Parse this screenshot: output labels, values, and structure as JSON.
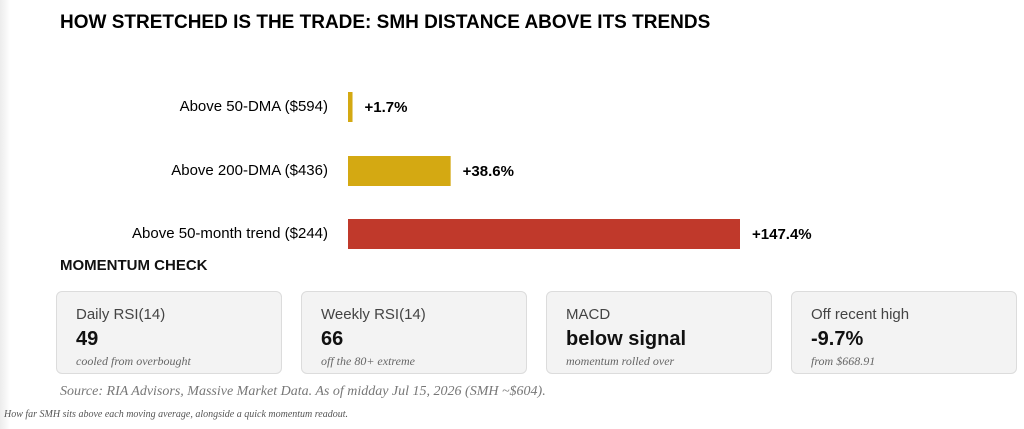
{
  "chart_data": {
    "type": "bar",
    "orientation": "horizontal",
    "title": "HOW STRETCHED IS THE TRADE: SMH DISTANCE ABOVE ITS TRENDS",
    "categories": [
      "Above 50-DMA ($594)",
      "Above 200-DMA ($436)",
      "Above 50-month trend ($244)"
    ],
    "values": [
      1.7,
      38.6,
      147.4
    ],
    "value_labels": [
      "+1.7%",
      "+38.6%",
      "+147.4%"
    ],
    "colors": [
      "#d4a912",
      "#d4a912",
      "#c0392b"
    ]
  },
  "momentum": {
    "title": "MOMENTUM CHECK",
    "cards": [
      {
        "label": "Daily RSI(14)",
        "value": 49,
        "note": "cooled from overbought"
      },
      {
        "label": "Weekly RSI(14)",
        "value": 66,
        "note": "off the 80+ extreme"
      },
      {
        "label": "MACD",
        "value": "below signal",
        "note": "momentum rolled over"
      },
      {
        "label": "Off recent high",
        "value": "-9.7%",
        "note": "from $668.91"
      }
    ]
  },
  "source": "Source: RIA Advisors, Massive Market Data. As of midday Jul 15, 2026 (SMH ~$604).",
  "caption": "How far SMH sits above each moving average, alongside a quick momentum readout."
}
